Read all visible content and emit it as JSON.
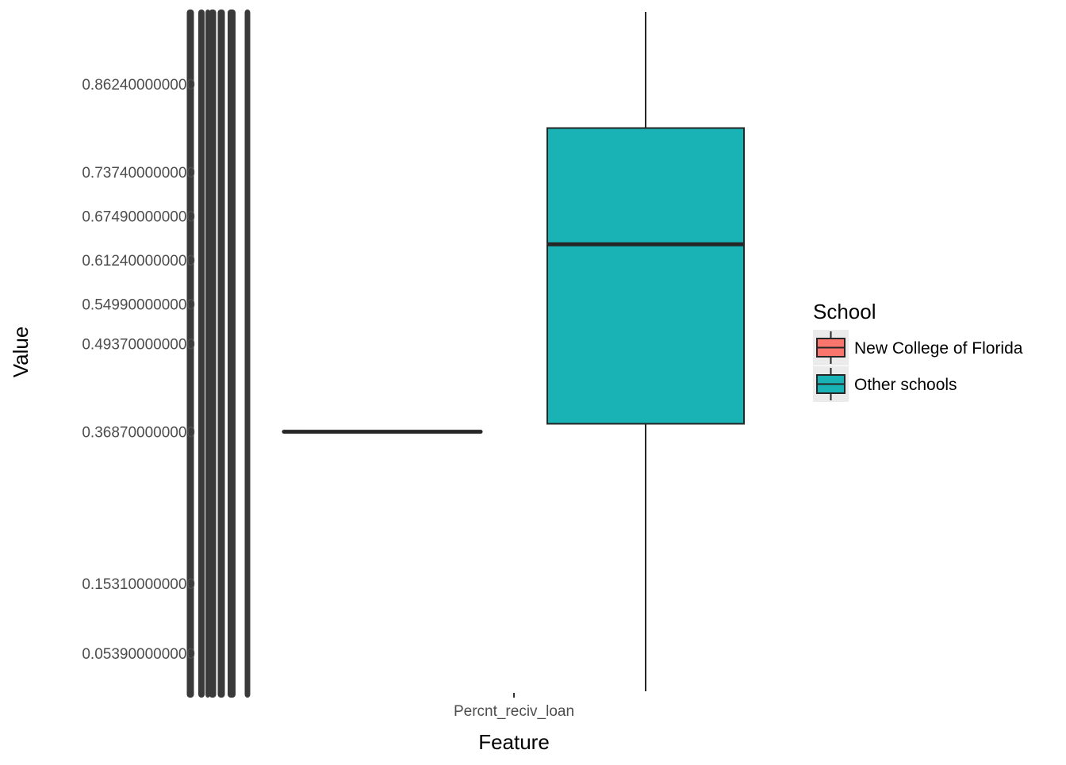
{
  "chart_data": {
    "type": "box",
    "xlabel": "Feature",
    "ylabel": "Value",
    "categories": [
      "Percnt_reciv_loan"
    ],
    "y_ticks": [
      {
        "value": 0.8624,
        "label": "0.862400000000"
      },
      {
        "value": 0.7374,
        "label": "0.737400000000"
      },
      {
        "value": 0.6749,
        "label": "0.674900000000"
      },
      {
        "value": 0.6124,
        "label": "0.612400000000"
      },
      {
        "value": 0.5499,
        "label": "0.549900000000"
      },
      {
        "value": 0.4937,
        "label": "0.493700000000"
      },
      {
        "value": 0.3687,
        "label": "0.368700000000"
      },
      {
        "value": 0.1531,
        "label": "0.153100000000"
      },
      {
        "value": 0.0539,
        "label": "0.053900000000"
      }
    ],
    "series": [
      {
        "name": "New College of Florida",
        "color": "#F8766D",
        "min": 0.3687,
        "q1": 0.3687,
        "median": 0.3687,
        "q3": 0.3687,
        "max": 0.3687
      },
      {
        "name": "Other schools",
        "color": "#00BFC4",
        "min": 0.0,
        "q1": 0.38,
        "median": 0.635,
        "q3": 0.8,
        "max": 0.965
      }
    ],
    "legend": {
      "title": "School",
      "position": "right"
    },
    "grid": false
  }
}
